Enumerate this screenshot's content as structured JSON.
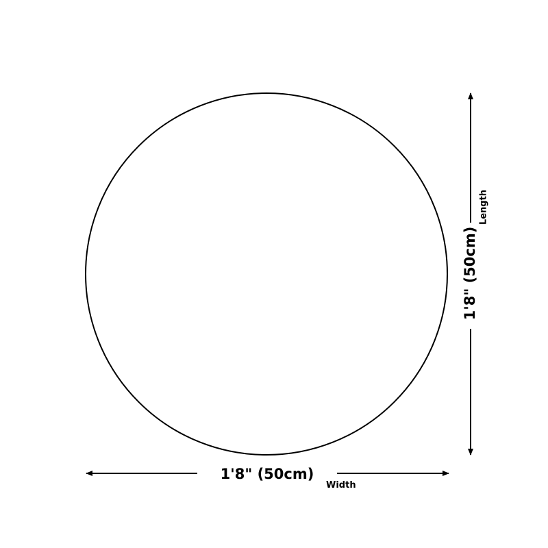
{
  "shape": "circle",
  "width": {
    "value": "1'8\" (50cm)",
    "label": "Width"
  },
  "length": {
    "value": "1'8\" (50cm)",
    "label": "Length"
  },
  "colors": {
    "stroke": "#000000",
    "background": "#ffffff"
  }
}
